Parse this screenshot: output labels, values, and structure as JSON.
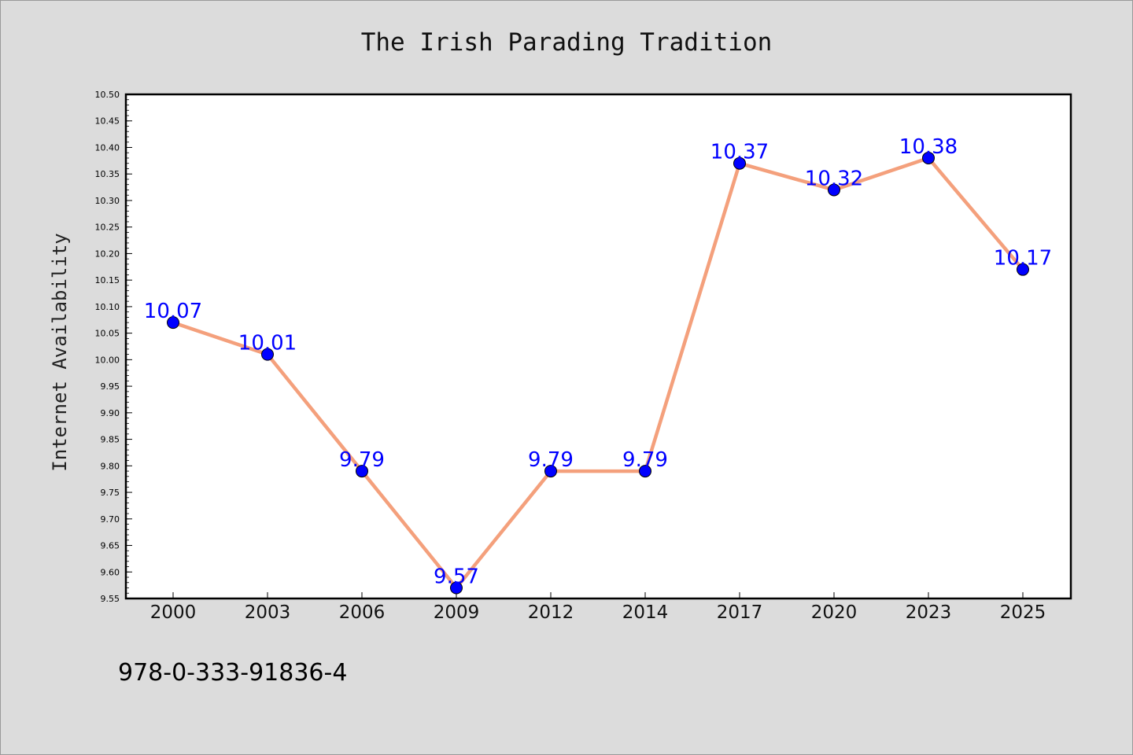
{
  "colors": {
    "line": "#f4a07c",
    "marker": "#0000ff",
    "label": "#0000ff"
  },
  "footnote": "978-0-333-91836-4",
  "chart_data": {
    "type": "line",
    "title": "The Irish Parading Tradition",
    "xlabel": "",
    "ylabel": "Internet Availability",
    "categories": [
      "2000",
      "2003",
      "2006",
      "2009",
      "2012",
      "2014",
      "2017",
      "2020",
      "2023",
      "2025"
    ],
    "series": [
      {
        "values": [
          10.07,
          10.01,
          9.79,
          9.57,
          9.79,
          9.79,
          10.37,
          10.32,
          10.38,
          10.17
        ]
      }
    ],
    "data_labels": [
      "10.07",
      "10.01",
      "9.79",
      "9.57",
      "9.79",
      "9.79",
      "10.37",
      "10.32",
      "10.38",
      "10.17"
    ],
    "ylim": [
      9.55,
      10.5
    ],
    "y_ticks": [
      "9.55",
      "9.60",
      "9.65",
      "9.70",
      "9.75",
      "9.80",
      "9.85",
      "9.90",
      "9.95",
      "10.00",
      "10.05",
      "10.10",
      "10.15",
      "10.20",
      "10.25",
      "10.30",
      "10.35",
      "10.40",
      "10.45",
      "10.50"
    ],
    "grid": false,
    "legend": "none"
  }
}
